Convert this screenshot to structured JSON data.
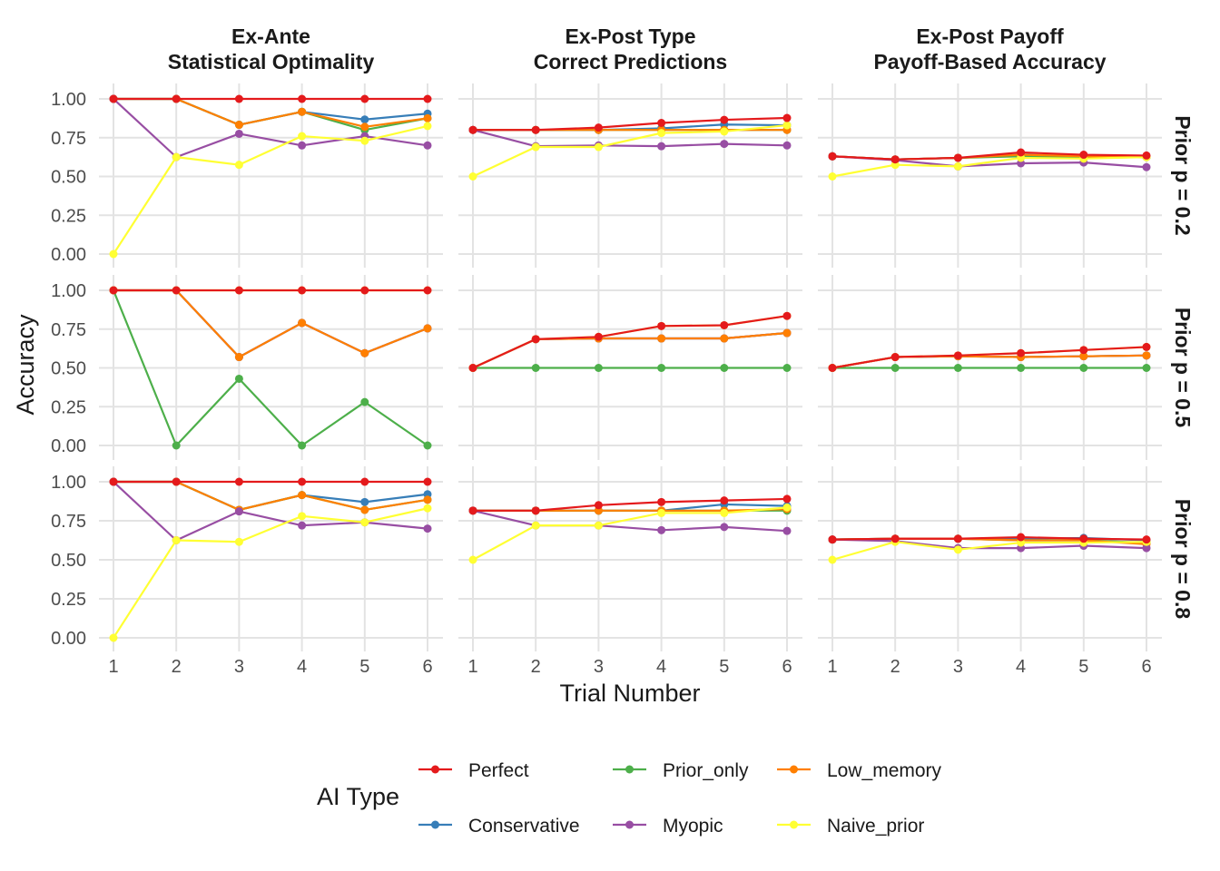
{
  "chart_data": {
    "type": "line",
    "ylabel": "Accuracy",
    "xlabel": "Trial Number",
    "x": [
      1,
      2,
      3,
      4,
      5,
      6
    ],
    "ylim": [
      0,
      1
    ],
    "yticks": [
      "0.00",
      "0.25",
      "0.50",
      "0.75",
      "1.00"
    ],
    "xticks": [
      "1",
      "2",
      "3",
      "4",
      "5",
      "6"
    ],
    "grid": true,
    "legend": {
      "title": "AI Type",
      "placement": "bottom",
      "entries": [
        "Perfect",
        "Conservative",
        "Prior_only",
        "Myopic",
        "Low_memory",
        "Naive_prior"
      ]
    },
    "colors": {
      "Perfect": "#e41a1c",
      "Conservative": "#377eb8",
      "Prior_only": "#4daf4a",
      "Myopic": "#984ea3",
      "Low_memory": "#ff7f00",
      "Naive_prior": "#ffff33"
    },
    "columns": [
      "Ex-Ante\nStatistical Optimality",
      "Ex-Post Type\nCorrect Predictions",
      "Ex-Post Payoff\nPayoff-Based Accuracy"
    ],
    "rows": [
      "Prior p = 0.2",
      "Prior p = 0.5",
      "Prior p = 0.8"
    ],
    "panels": [
      [
        {
          "series": [
            {
              "name": "Conservative",
              "values": [
                1.0,
                1.0,
                0.833,
                0.917,
                0.867,
                0.905
              ]
            },
            {
              "name": "Prior_only",
              "values": [
                1.0,
                1.0,
                0.833,
                0.917,
                0.8,
                0.875
              ]
            },
            {
              "name": "Low_memory",
              "values": [
                1.0,
                1.0,
                0.833,
                0.917,
                0.82,
                0.875
              ]
            },
            {
              "name": "Myopic",
              "values": [
                1.0,
                0.625,
                0.775,
                0.7,
                0.76,
                0.7
              ]
            },
            {
              "name": "Naive_prior",
              "values": [
                0.0,
                0.625,
                0.575,
                0.76,
                0.73,
                0.825
              ]
            },
            {
              "name": "Perfect",
              "values": [
                1.0,
                1.0,
                1.0,
                1.0,
                1.0,
                1.0
              ]
            }
          ]
        },
        {
          "series": [
            {
              "name": "Conservative",
              "values": [
                0.8,
                0.8,
                0.8,
                0.81,
                0.835,
                0.83
              ]
            },
            {
              "name": "Prior_only",
              "values": [
                0.8,
                0.8,
                0.8,
                0.8,
                0.8,
                0.8
              ]
            },
            {
              "name": "Low_memory",
              "values": [
                0.8,
                0.8,
                0.8,
                0.8,
                0.8,
                0.8
              ]
            },
            {
              "name": "Myopic",
              "values": [
                0.8,
                0.695,
                0.7,
                0.695,
                0.71,
                0.7
              ]
            },
            {
              "name": "Naive_prior",
              "values": [
                0.5,
                0.69,
                0.69,
                0.78,
                0.79,
                0.83
              ]
            },
            {
              "name": "Perfect",
              "values": [
                0.8,
                0.8,
                0.815,
                0.845,
                0.865,
                0.877
              ]
            }
          ]
        },
        {
          "series": [
            {
              "name": "Conservative",
              "values": [
                0.63,
                0.61,
                0.62,
                0.64,
                0.63,
                0.63
              ]
            },
            {
              "name": "Prior_only",
              "values": [
                0.63,
                0.61,
                0.62,
                0.63,
                0.62,
                0.625
              ]
            },
            {
              "name": "Low_memory",
              "values": [
                0.63,
                0.61,
                0.62,
                0.64,
                0.63,
                0.625
              ]
            },
            {
              "name": "Myopic",
              "values": [
                0.63,
                0.605,
                0.565,
                0.585,
                0.59,
                0.56
              ]
            },
            {
              "name": "Naive_prior",
              "values": [
                0.5,
                0.575,
                0.565,
                0.62,
                0.615,
                0.625
              ]
            },
            {
              "name": "Perfect",
              "values": [
                0.63,
                0.61,
                0.62,
                0.655,
                0.64,
                0.635
              ]
            }
          ]
        }
      ],
      [
        {
          "series": [
            {
              "name": "Conservative",
              "values": [
                1.0,
                1.0,
                0.57,
                0.79,
                0.595,
                0.755
              ]
            },
            {
              "name": "Myopic",
              "values": [
                1.0,
                1.0,
                0.57,
                0.79,
                0.595,
                0.755
              ]
            },
            {
              "name": "Low_memory",
              "values": [
                1.0,
                1.0,
                0.57,
                0.79,
                0.595,
                0.755
              ]
            },
            {
              "name": "Prior_only",
              "values": [
                1.0,
                0.0,
                0.43,
                0.0,
                0.28,
                0.0
              ]
            },
            {
              "name": "Naive_prior",
              "values": [
                1.0,
                1.0,
                1.0,
                1.0,
                1.0,
                1.0
              ]
            },
            {
              "name": "Perfect",
              "values": [
                1.0,
                1.0,
                1.0,
                1.0,
                1.0,
                1.0
              ]
            }
          ]
        },
        {
          "series": [
            {
              "name": "Prior_only",
              "values": [
                0.5,
                0.5,
                0.5,
                0.5,
                0.5,
                0.5
              ]
            },
            {
              "name": "Conservative",
              "values": [
                0.5,
                0.685,
                0.69,
                0.69,
                0.69,
                0.725
              ]
            },
            {
              "name": "Myopic",
              "values": [
                0.5,
                0.685,
                0.69,
                0.69,
                0.69,
                0.725
              ]
            },
            {
              "name": "Low_memory",
              "values": [
                0.5,
                0.685,
                0.69,
                0.69,
                0.69,
                0.725
              ]
            },
            {
              "name": "Naive_prior",
              "values": [
                0.5,
                0.685,
                0.7,
                0.77,
                0.775,
                0.835
              ]
            },
            {
              "name": "Perfect",
              "values": [
                0.5,
                0.685,
                0.7,
                0.77,
                0.775,
                0.835
              ]
            }
          ]
        },
        {
          "series": [
            {
              "name": "Prior_only",
              "values": [
                0.5,
                0.5,
                0.5,
                0.5,
                0.5,
                0.5
              ]
            },
            {
              "name": "Conservative",
              "values": [
                0.5,
                0.57,
                0.575,
                0.57,
                0.575,
                0.58
              ]
            },
            {
              "name": "Myopic",
              "values": [
                0.5,
                0.57,
                0.575,
                0.57,
                0.575,
                0.58
              ]
            },
            {
              "name": "Low_memory",
              "values": [
                0.5,
                0.57,
                0.575,
                0.57,
                0.575,
                0.58
              ]
            },
            {
              "name": "Naive_prior",
              "values": [
                0.5,
                0.57,
                0.58,
                0.595,
                0.615,
                0.635
              ]
            },
            {
              "name": "Perfect",
              "values": [
                0.5,
                0.57,
                0.58,
                0.595,
                0.615,
                0.635
              ]
            }
          ]
        }
      ],
      [
        {
          "series": [
            {
              "name": "Conservative",
              "values": [
                1.0,
                1.0,
                0.82,
                0.915,
                0.87,
                0.92
              ]
            },
            {
              "name": "Prior_only",
              "values": [
                1.0,
                1.0,
                0.82,
                0.915,
                0.82,
                0.885
              ]
            },
            {
              "name": "Low_memory",
              "values": [
                1.0,
                1.0,
                0.82,
                0.915,
                0.82,
                0.885
              ]
            },
            {
              "name": "Myopic",
              "values": [
                1.0,
                0.625,
                0.81,
                0.72,
                0.74,
                0.7
              ]
            },
            {
              "name": "Naive_prior",
              "values": [
                0.0,
                0.625,
                0.615,
                0.78,
                0.74,
                0.83
              ]
            },
            {
              "name": "Perfect",
              "values": [
                1.0,
                1.0,
                1.0,
                1.0,
                1.0,
                1.0
              ]
            }
          ]
        },
        {
          "series": [
            {
              "name": "Conservative",
              "values": [
                0.815,
                0.815,
                0.815,
                0.815,
                0.855,
                0.845
              ]
            },
            {
              "name": "Prior_only",
              "values": [
                0.815,
                0.815,
                0.815,
                0.815,
                0.815,
                0.815
              ]
            },
            {
              "name": "Low_memory",
              "values": [
                0.815,
                0.815,
                0.815,
                0.815,
                0.815,
                0.825
              ]
            },
            {
              "name": "Myopic",
              "values": [
                0.815,
                0.72,
                0.72,
                0.69,
                0.71,
                0.685
              ]
            },
            {
              "name": "Naive_prior",
              "values": [
                0.5,
                0.72,
                0.72,
                0.8,
                0.8,
                0.835
              ]
            },
            {
              "name": "Perfect",
              "values": [
                0.815,
                0.815,
                0.85,
                0.87,
                0.88,
                0.89
              ]
            }
          ]
        },
        {
          "series": [
            {
              "name": "Conservative",
              "values": [
                0.63,
                0.635,
                0.635,
                0.635,
                0.64,
                0.625
              ]
            },
            {
              "name": "Prior_only",
              "values": [
                0.63,
                0.635,
                0.635,
                0.625,
                0.625,
                0.61
              ]
            },
            {
              "name": "Low_memory",
              "values": [
                0.63,
                0.635,
                0.635,
                0.625,
                0.625,
                0.6
              ]
            },
            {
              "name": "Myopic",
              "values": [
                0.63,
                0.62,
                0.575,
                0.575,
                0.59,
                0.575
              ]
            },
            {
              "name": "Naive_prior",
              "values": [
                0.5,
                0.615,
                0.565,
                0.61,
                0.61,
                0.615
              ]
            },
            {
              "name": "Perfect",
              "values": [
                0.63,
                0.635,
                0.635,
                0.645,
                0.635,
                0.63
              ]
            }
          ]
        }
      ]
    ]
  }
}
